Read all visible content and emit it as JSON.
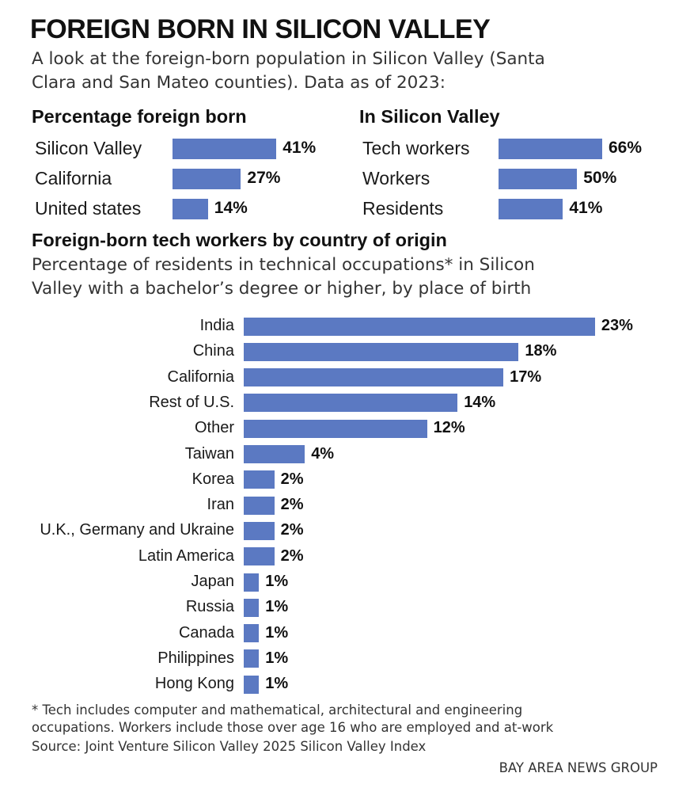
{
  "header": {
    "title": "FOREIGN BORN IN SILICON VALLEY",
    "subtitle_line1": "A look at the foreign-born population in Silicon Valley (Santa",
    "subtitle_line2": "Clara and San Mateo counties). Data as of 2023:"
  },
  "chart_data": [
    {
      "type": "bar",
      "orientation": "horizontal",
      "title": "Percentage foreign born",
      "categories": [
        "Silicon Valley",
        "California",
        "United states"
      ],
      "values": [
        41,
        27,
        14
      ],
      "labels": [
        "41%",
        "27%",
        "14%"
      ],
      "unit": "%"
    },
    {
      "type": "bar",
      "orientation": "horizontal",
      "title": "In Silicon Valley",
      "categories": [
        "Tech workers",
        "Workers",
        "Residents"
      ],
      "values": [
        66,
        50,
        41
      ],
      "labels": [
        "66%",
        "50%",
        "41%"
      ],
      "unit": "%"
    },
    {
      "type": "bar",
      "orientation": "horizontal",
      "title": "Foreign-born tech workers by country of origin",
      "subtitle_line1": "Percentage of residents in technical occupations* in Silicon",
      "subtitle_line2": "Valley with a bachelor’s degree or higher, by place of birth",
      "categories": [
        "India",
        "China",
        "California",
        "Rest of U.S.",
        "Other",
        "Taiwan",
        "Korea",
        "Iran",
        "U.K., Germany and Ukraine",
        "Latin America",
        "Japan",
        "Russia",
        "Canada",
        "Philippines",
        "Hong Kong"
      ],
      "values": [
        23,
        18,
        17,
        14,
        12,
        4,
        2,
        2,
        2,
        2,
        1,
        1,
        1,
        1,
        1
      ],
      "labels": [
        "23%",
        "18%",
        "17%",
        "14%",
        "12%",
        "4%",
        "2%",
        "2%",
        "2%",
        "2%",
        "1%",
        "1%",
        "1%",
        "1%",
        "1%"
      ],
      "unit": "%"
    }
  ],
  "footer": {
    "note_line1": "* Tech includes computer and mathematical, architectural and engineering",
    "note_line2": "occupations. Workers include those over age 16 who are employed and at-work",
    "source": "Source: Joint Venture Silicon Valley 2025 Silicon Valley Index",
    "credit": "BAY AREA NEWS GROUP"
  },
  "colors": {
    "bar": "#5b79c2",
    "text": "#1a1a1a"
  }
}
